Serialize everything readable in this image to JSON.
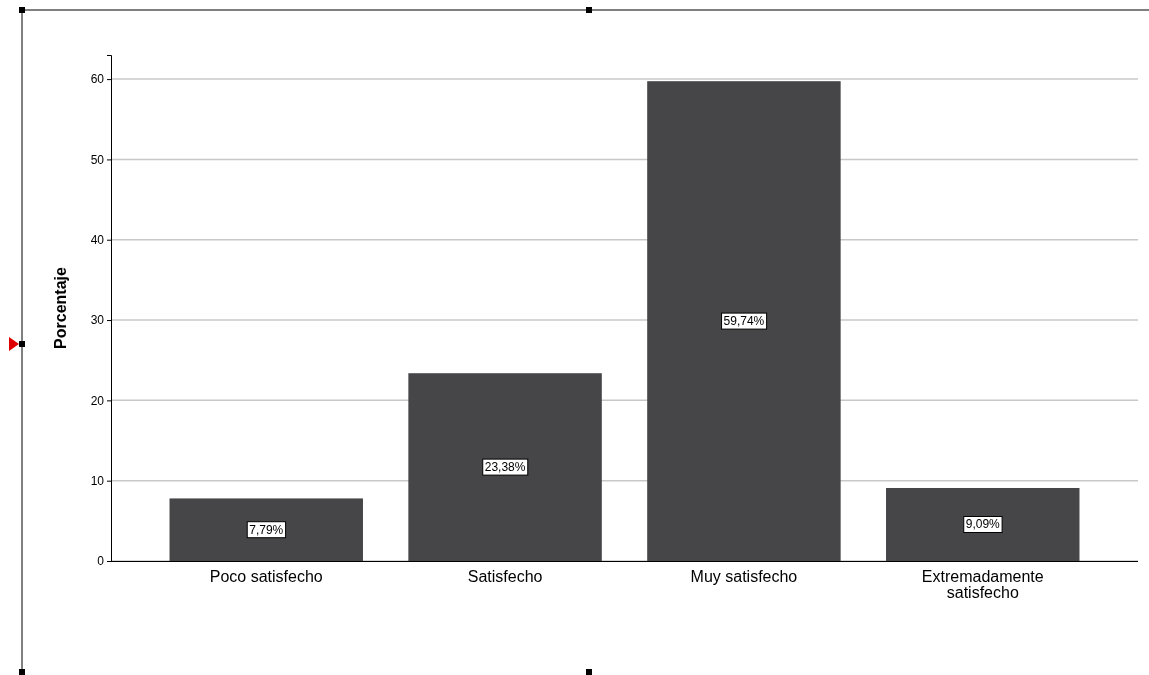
{
  "chart_data": {
    "type": "bar",
    "ylabel": "Porcentaje",
    "categories": [
      "Poco satisfecho",
      "Satisfecho",
      "Muy satisfecho",
      "Extremadamente satisfecho"
    ],
    "values": [
      7.79,
      23.38,
      59.74,
      9.09
    ],
    "value_labels": [
      "7,79%",
      "23,38%",
      "59,74%",
      "9,09%"
    ],
    "color": "#464648",
    "ylim": [
      0,
      63
    ],
    "yticks": [
      0,
      10,
      20,
      30,
      40,
      50,
      60
    ],
    "grid": "y"
  }
}
